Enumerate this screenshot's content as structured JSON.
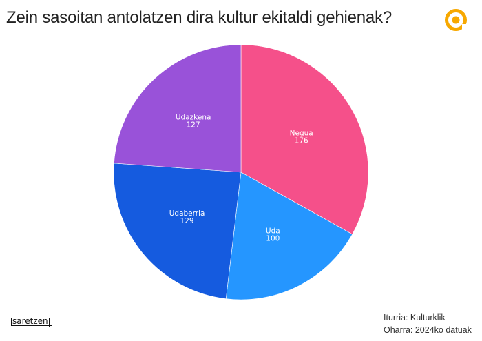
{
  "title": "Zein sasoitan antolatzen dira kultur ekitaldi gehienak?",
  "logo_icon": "saretzen-circle-logo-icon",
  "brand": "saretzen",
  "source": "Iturria: Kulturklik",
  "note": "Oharra: 2024ko datuak",
  "colors": {
    "Negua": "#f5508a",
    "Uda": "#2596ff",
    "Udaberria": "#155bdf",
    "Udazkena": "#9952d9",
    "logo": "#f7a800"
  },
  "chart_data": {
    "type": "pie",
    "title": "Zein sasoitan antolatzen dira kultur ekitaldi gehienak?",
    "categories": [
      "Negua",
      "Uda",
      "Udaberria",
      "Udazkena"
    ],
    "values": [
      176,
      100,
      129,
      127
    ],
    "start_angle": "12 o'clock, clockwise",
    "legend": "none (labels inside slices)",
    "labels": [
      {
        "name": "Negua",
        "value": "176"
      },
      {
        "name": "Uda",
        "value": "100"
      },
      {
        "name": "Udaberria",
        "value": "129"
      },
      {
        "name": "Udazkena",
        "value": "127"
      }
    ]
  }
}
